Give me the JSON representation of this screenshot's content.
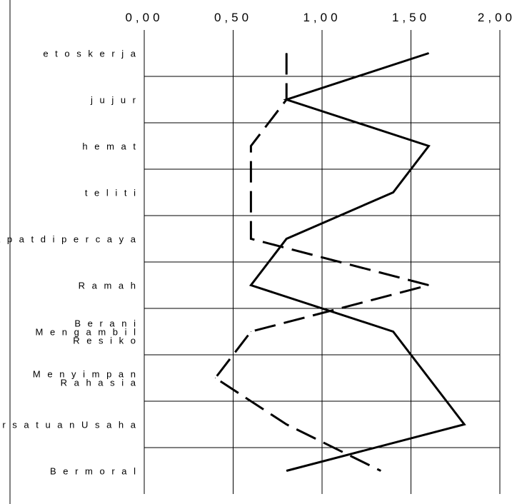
{
  "chart_data": {
    "type": "line",
    "orientation": "horizontal",
    "title": "",
    "xlabel": "",
    "ylabel": "",
    "xlim": [
      0,
      2
    ],
    "x_ticks": [
      "0,00",
      "0,50",
      "1,00",
      "1,50",
      "2,00"
    ],
    "grid": true,
    "legend": "none",
    "categories": [
      "etos kerja",
      "jujur",
      "hemat",
      "teliti",
      "Dapat dipercaya",
      "Ramah",
      "Berani Mengambil Resiko",
      "Menyimpan Rahasia",
      "Persatuan Usaha",
      "Bermoral"
    ],
    "category_lines": [
      [
        "e t o s  k e r j a"
      ],
      [
        "j u  j u  r"
      ],
      [
        "h e m  a t"
      ],
      [
        "t e  l i t i"
      ],
      [
        "D a p a t  d i p e r c a y a"
      ],
      [
        "R a m a h"
      ],
      [
        "B e r a n i",
        "M e n g a m  b i l",
        "R e s i k o"
      ],
      [
        "M e n y i m  p a n",
        "R a h a s i a"
      ],
      [
        "P e r s a t u a n  U s a h a"
      ],
      [
        "B e r m o r a l"
      ]
    ],
    "series": [
      {
        "style": "solid",
        "color": "#000000",
        "values": [
          1.6,
          0.8,
          1.6,
          1.4,
          0.8,
          0.6,
          1.4,
          1.6,
          1.8,
          0.8
        ]
      },
      {
        "style": "dashed",
        "color": "#000000",
        "values": [
          0.8,
          0.8,
          0.6,
          0.6,
          0.6,
          1.6,
          0.6,
          0.4,
          0.8,
          1.33
        ]
      }
    ]
  }
}
